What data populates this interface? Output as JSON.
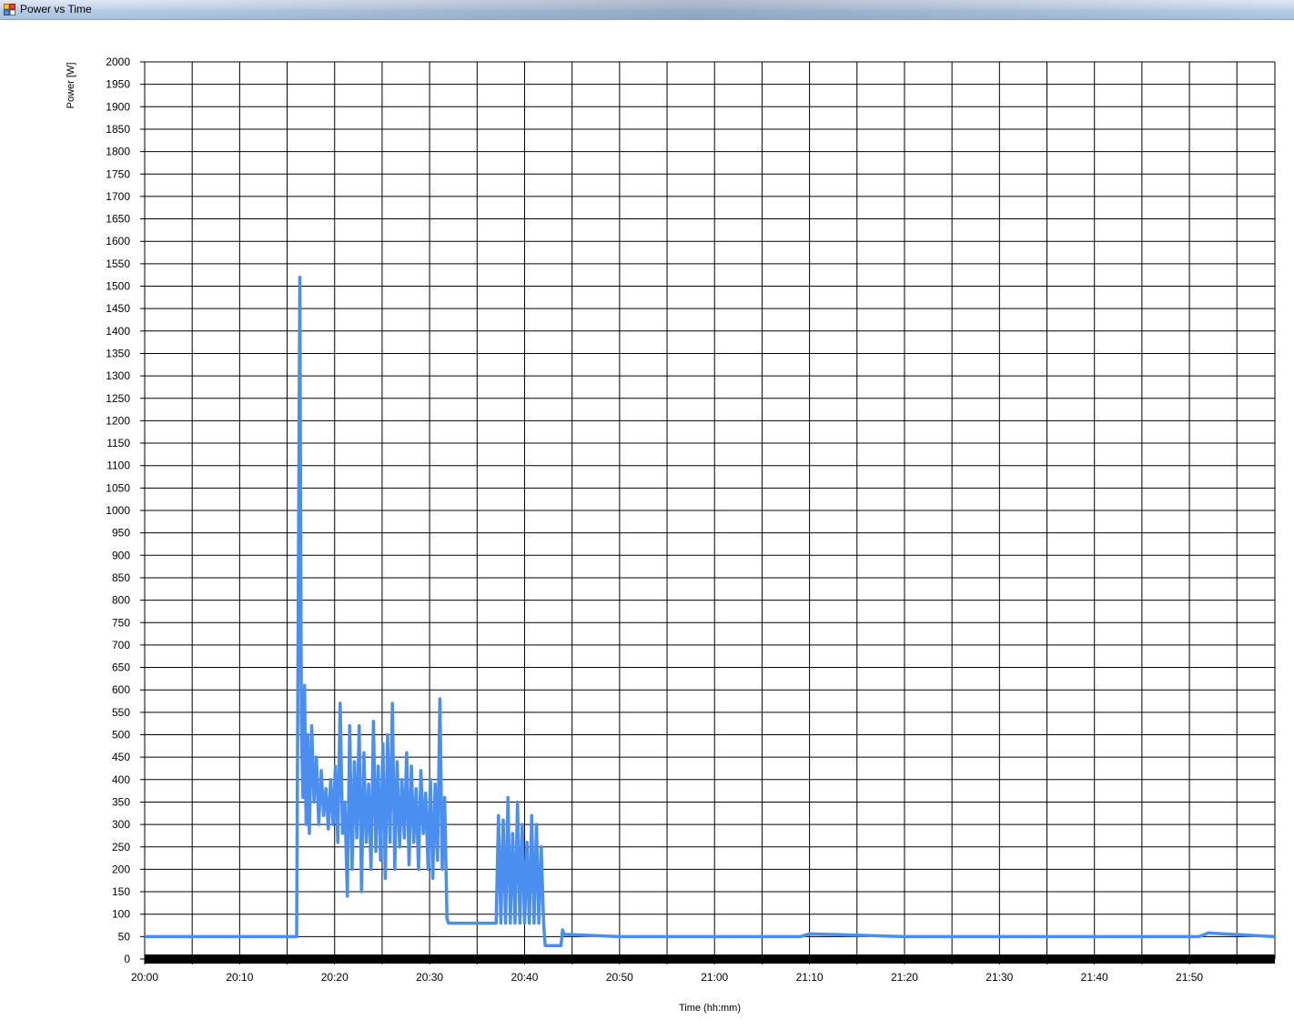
{
  "window": {
    "title": "Power vs Time",
    "icon": "app-window-icon"
  },
  "chart_data": {
    "type": "line",
    "title": "",
    "xlabel": "Time (hh:mm)",
    "ylabel": "Power [W]",
    "x_unit": "hh:mm",
    "xlim": [
      "20:00",
      "21:59"
    ],
    "ylim": [
      0,
      2000
    ],
    "y_ticks": [
      0,
      50,
      100,
      150,
      200,
      250,
      300,
      350,
      400,
      450,
      500,
      550,
      600,
      650,
      700,
      750,
      800,
      850,
      900,
      950,
      1000,
      1050,
      1100,
      1150,
      1200,
      1250,
      1300,
      1350,
      1400,
      1450,
      1500,
      1550,
      1600,
      1650,
      1700,
      1750,
      1800,
      1850,
      1900,
      1950,
      2000
    ],
    "x_tick_labels": [
      "20:00",
      "20:10",
      "20:20",
      "20:30",
      "20:40",
      "20:50",
      "21:00",
      "21:10",
      "21:20",
      "21:30",
      "21:40",
      "21:50"
    ],
    "grid": true,
    "line_color": "#4a8ef0",
    "series": [
      {
        "x": [
          "20:00",
          "20:05",
          "20:10",
          "20:16",
          "20:16:20",
          "20:16:30",
          "20:16:40",
          "20:16:50",
          "20:17:00",
          "20:17:10",
          "20:17:20",
          "20:17:35",
          "20:17:50",
          "20:18:05",
          "20:18:20",
          "20:18:35",
          "20:18:50",
          "20:19:05",
          "20:19:20",
          "20:19:35",
          "20:19:50",
          "20:20:05",
          "20:20:20",
          "20:20:35",
          "20:20:50",
          "20:21:05",
          "20:21:20",
          "20:21:35",
          "20:21:50",
          "20:22:05",
          "20:22:20",
          "20:22:35",
          "20:22:50",
          "20:23:05",
          "20:23:20",
          "20:23:35",
          "20:23:50",
          "20:24:05",
          "20:24:20",
          "20:24:35",
          "20:24:50",
          "20:25:05",
          "20:25:20",
          "20:25:35",
          "20:25:50",
          "20:26:05",
          "20:26:20",
          "20:26:35",
          "20:26:50",
          "20:27:05",
          "20:27:20",
          "20:27:35",
          "20:27:50",
          "20:28:05",
          "20:28:20",
          "20:28:35",
          "20:28:50",
          "20:29:05",
          "20:29:20",
          "20:29:35",
          "20:29:50",
          "20:30:05",
          "20:30:20",
          "20:30:35",
          "20:30:50",
          "20:31:05",
          "20:31:20",
          "20:31:35",
          "20:31:50",
          "20:32:00",
          "20:35",
          "20:37:00",
          "20:37:15",
          "20:37:30",
          "20:37:45",
          "20:38:00",
          "20:38:15",
          "20:38:30",
          "20:38:45",
          "20:39:00",
          "20:39:15",
          "20:39:30",
          "20:39:45",
          "20:40:00",
          "20:40:15",
          "20:40:30",
          "20:40:45",
          "20:41:00",
          "20:41:15",
          "20:41:30",
          "20:41:45",
          "20:42:00",
          "20:42:10",
          "20:43:50",
          "20:44:00",
          "20:44:10",
          "20:50",
          "21:00",
          "21:05",
          "21:09",
          "21:10",
          "21:12",
          "21:20",
          "21:30",
          "21:40",
          "21:50",
          "21:51",
          "21:52",
          "21:59"
        ],
        "y": [
          50,
          50,
          50,
          50,
          1520,
          520,
          360,
          610,
          300,
          500,
          280,
          520,
          350,
          450,
          300,
          420,
          320,
          380,
          290,
          400,
          300,
          430,
          260,
          570,
          280,
          350,
          140,
          520,
          200,
          440,
          270,
          520,
          150,
          460,
          260,
          390,
          200,
          530,
          240,
          430,
          220,
          480,
          180,
          500,
          260,
          570,
          200,
          440,
          250,
          400,
          270,
          460,
          210,
          430,
          260,
          380,
          200,
          420,
          280,
          370,
          200,
          400,
          180,
          390,
          220,
          580,
          200,
          360,
          90,
          80,
          80,
          80,
          320,
          80,
          310,
          80,
          360,
          80,
          280,
          80,
          350,
          80,
          300,
          80,
          260,
          80,
          320,
          80,
          300,
          80,
          250,
          80,
          30,
          30,
          65,
          55,
          50,
          50,
          50,
          50,
          56,
          55,
          50,
          50,
          50,
          50,
          50,
          58,
          50
        ]
      }
    ]
  }
}
